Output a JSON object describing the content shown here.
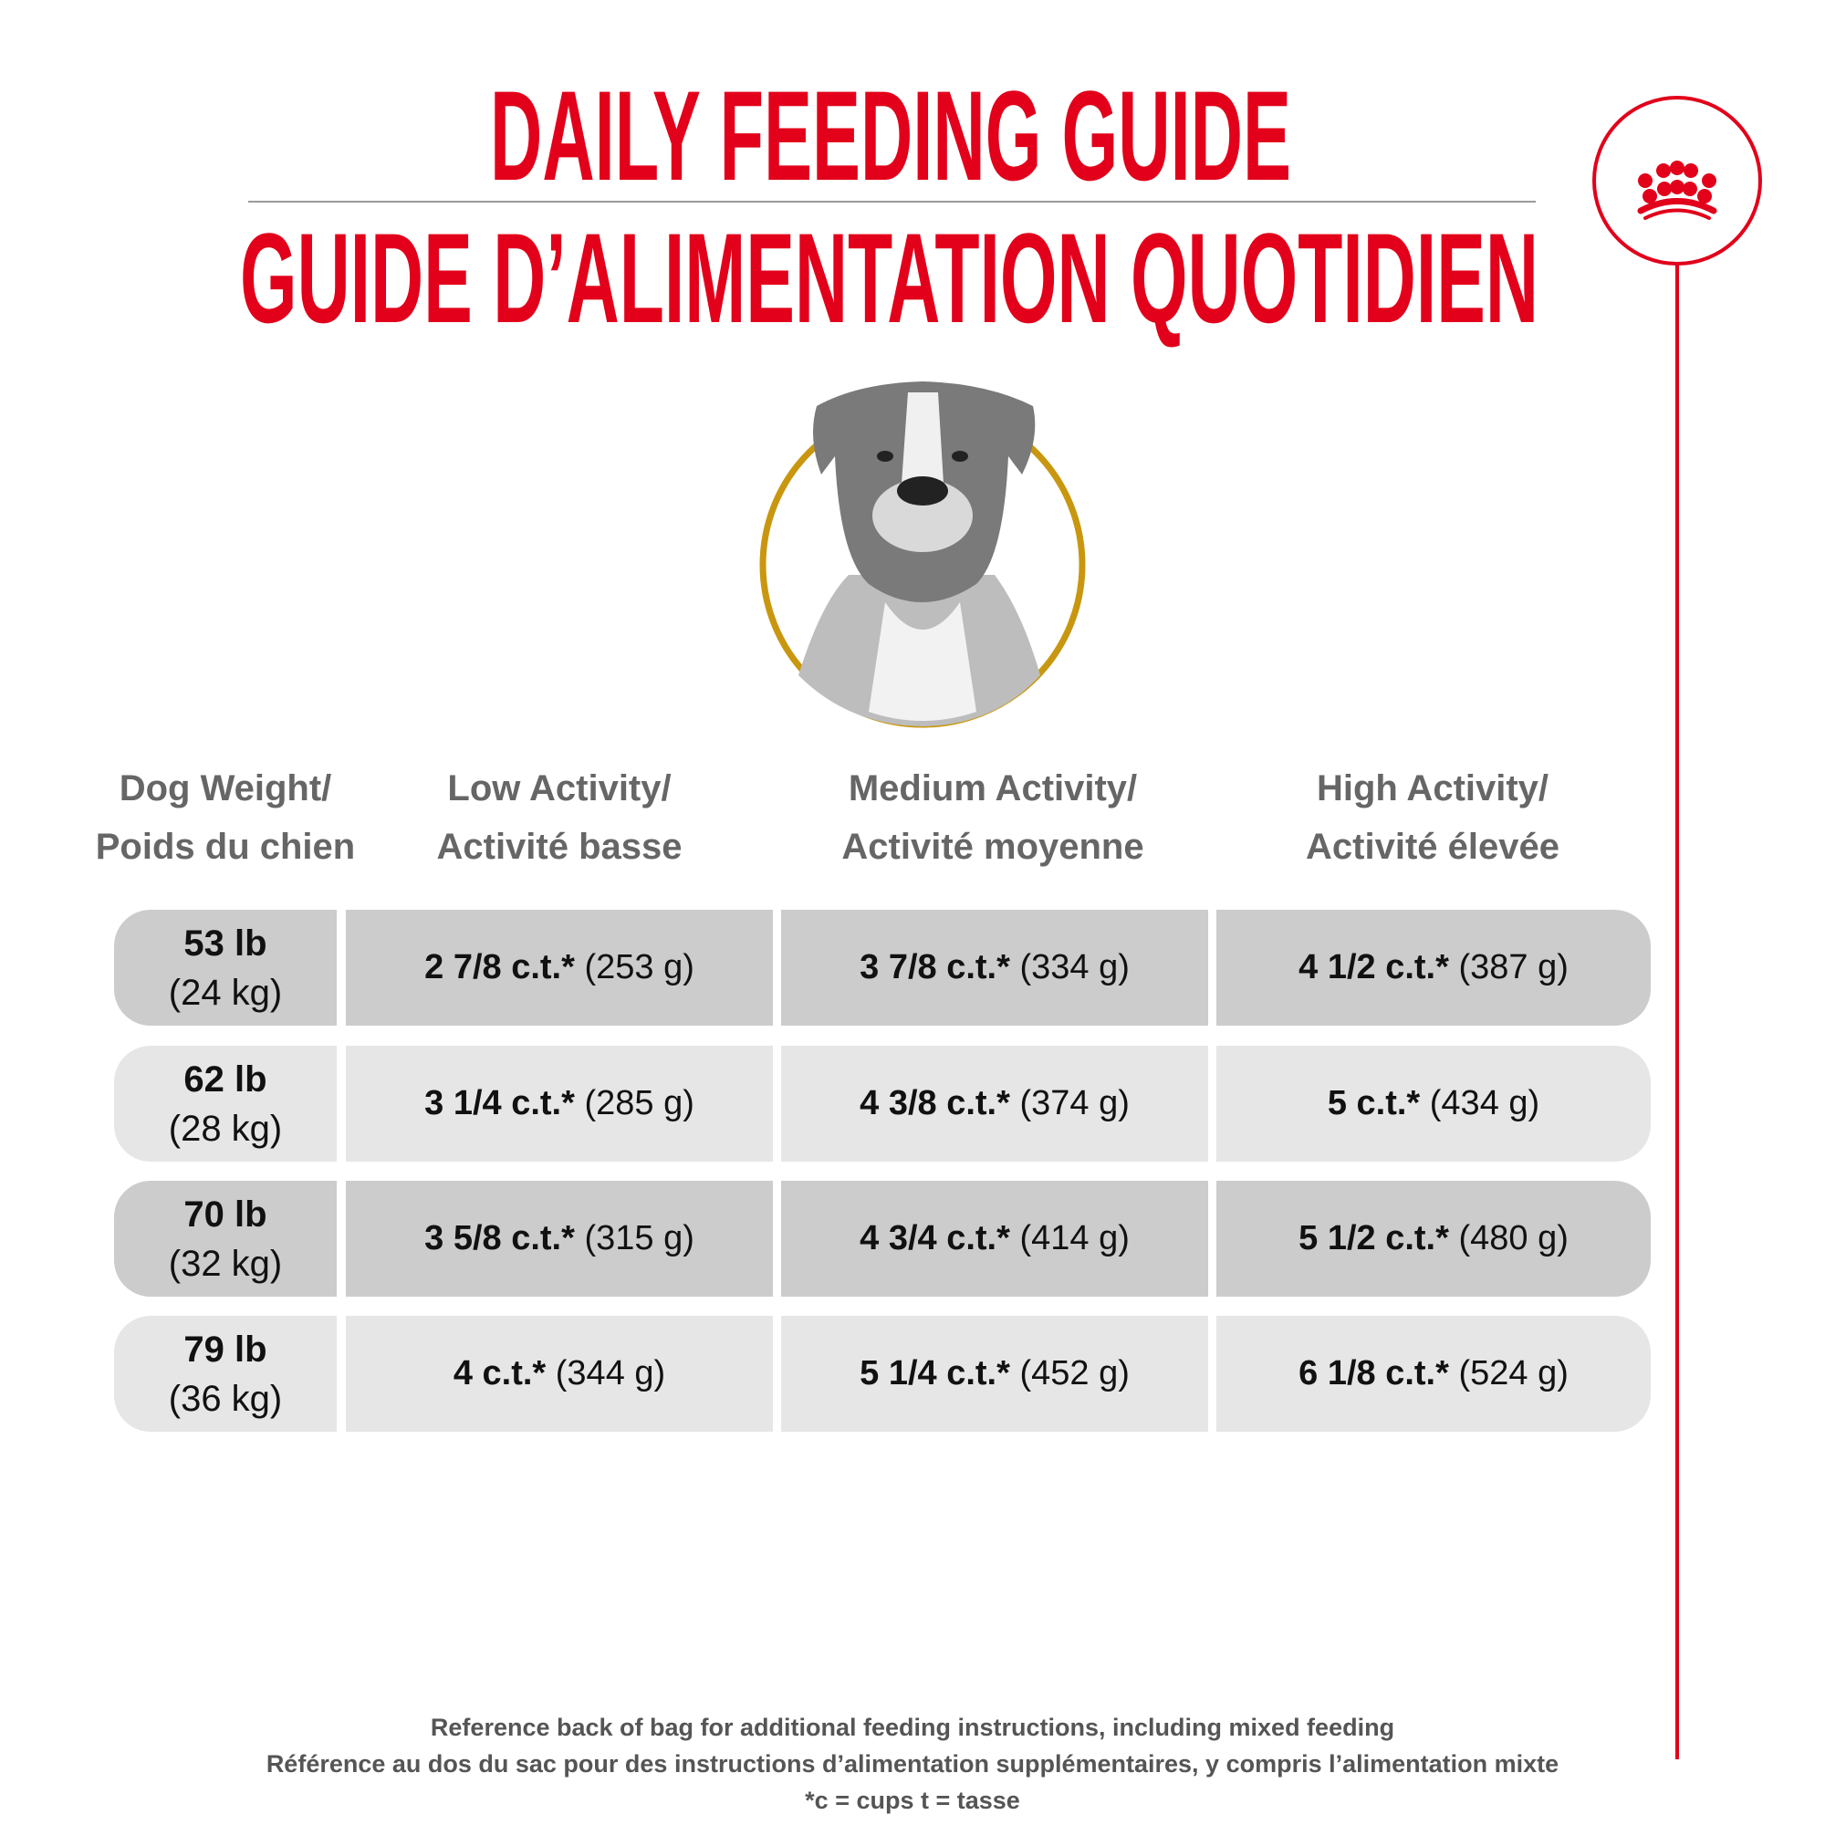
{
  "header": {
    "title_en": "DAILY FEEDING GUIDE",
    "title_fr": "GUIDE D’ALIMENTATION QUOTIDIEN"
  },
  "brand": {
    "logo": "crown-icon",
    "color": "#e2001a",
    "accent_ring": "#c9970f"
  },
  "table": {
    "columns": [
      {
        "line1": "Dog Weight/",
        "line2": "Poids du chien"
      },
      {
        "line1": "Low Activity/",
        "line2": "Activité basse"
      },
      {
        "line1": "Medium Activity/",
        "line2": "Activité moyenne"
      },
      {
        "line1": "High Activity/",
        "line2": "Activité élevée"
      }
    ],
    "rows": [
      {
        "lb": "53 lb",
        "kg": "(24 kg)",
        "cells": [
          {
            "cups": "2 7/8 c.t.*",
            "grams": "(253 g)"
          },
          {
            "cups": "3 7/8 c.t.*",
            "grams": "(334 g)"
          },
          {
            "cups": "4 1/2 c.t.*",
            "grams": "(387 g)"
          }
        ]
      },
      {
        "lb": "62 lb",
        "kg": "(28 kg)",
        "cells": [
          {
            "cups": "3 1/4 c.t.*",
            "grams": "(285 g)"
          },
          {
            "cups": "4 3/8 c.t.*",
            "grams": "(374 g)"
          },
          {
            "cups": "5 c.t.*",
            "grams": "(434 g)"
          }
        ]
      },
      {
        "lb": "70 lb",
        "kg": "(32 kg)",
        "cells": [
          {
            "cups": "3 5/8 c.t.*",
            "grams": "(315 g)"
          },
          {
            "cups": "4 3/4 c.t.*",
            "grams": "(414 g)"
          },
          {
            "cups": "5 1/2 c.t.*",
            "grams": "(480 g)"
          }
        ]
      },
      {
        "lb": "79 lb",
        "kg": "(36 kg)",
        "cells": [
          {
            "cups": "4 c.t.*",
            "grams": "(344 g)"
          },
          {
            "cups": "5 1/4 c.t.*",
            "grams": "(452 g)"
          },
          {
            "cups": "6 1/8 c.t.*",
            "grams": "(524 g)"
          }
        ]
      }
    ]
  },
  "footer": {
    "line1": "Reference back of bag for additional feeding instructions, including mixed feeding",
    "line2": "Référence au dos du sac pour des instructions d’alimentation supplémentaires, y compris l’alimentation mixte",
    "line3": "*c = cups t = tasse"
  }
}
